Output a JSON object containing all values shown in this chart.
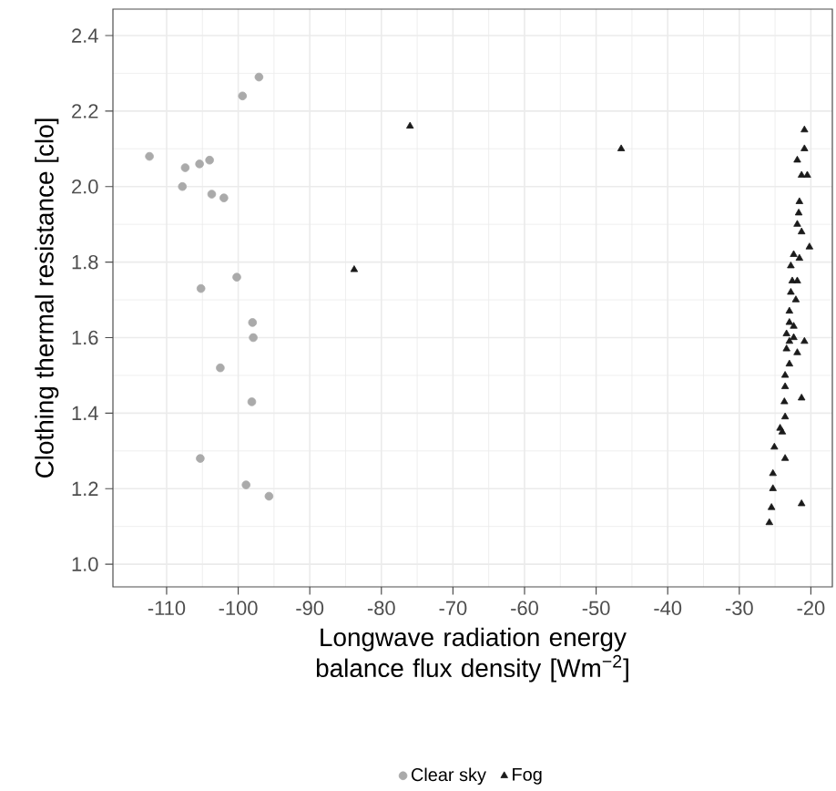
{
  "chart_data": {
    "type": "scatter",
    "xlabel": "Longwave radiation energy balance flux density  [Wm$^{−2}$]",
    "ylabel": "Clothing thermal resistance [clo]",
    "xlim": [
      -117.5,
      -17
    ],
    "ylim": [
      0.94,
      2.47
    ],
    "xticks": [
      -110,
      -100,
      -90,
      -80,
      -70,
      -60,
      -50,
      -40,
      -30,
      -20
    ],
    "yticks": [
      {
        "value": 1.0,
        "label": "1.0"
      },
      {
        "value": 1.2,
        "label": "1.2"
      },
      {
        "value": 1.4,
        "label": "1.4"
      },
      {
        "value": 1.6,
        "label": "1.6"
      },
      {
        "value": 1.8,
        "label": "1.8"
      },
      {
        "value": 2.0,
        "label": "2.0"
      },
      {
        "value": 2.2,
        "label": "2.2"
      },
      {
        "value": 2.4,
        "label": "2.4"
      }
    ],
    "grid": true,
    "legend": "bottom",
    "series": [
      {
        "name": "Clear sky",
        "color": "#aaaaaa",
        "marker": "circle",
        "x": [
          -112.4,
          -107.4,
          -107.8,
          -105.4,
          -104.0,
          -103.7,
          -102.0,
          -99.4,
          -97.1,
          -105.2,
          -100.2,
          -98.0,
          -97.9,
          -102.5,
          -98.1,
          -105.3,
          -98.9,
          -95.7
        ],
        "values": [
          2.08,
          2.05,
          2.0,
          2.06,
          2.07,
          1.98,
          1.97,
          2.24,
          2.29,
          1.73,
          1.76,
          1.64,
          1.6,
          1.52,
          1.43,
          1.28,
          1.21,
          1.18
        ]
      },
      {
        "name": "Fog",
        "color": "#1a1a1a",
        "marker": "triangle",
        "x": [
          -83.8,
          -76.0,
          -46.5,
          -20.9,
          -20.9,
          -21.9,
          -21.3,
          -20.5,
          -21.6,
          -21.7,
          -21.9,
          -21.3,
          -20.2,
          -22.4,
          -21.6,
          -22.8,
          -22.6,
          -21.9,
          -22.8,
          -22.1,
          -23.0,
          -23.0,
          -22.4,
          -23.4,
          -22.4,
          -23.0,
          -20.9,
          -23.4,
          -21.9,
          -23.0,
          -23.6,
          -23.6,
          -21.3,
          -23.7,
          -23.6,
          -24.3,
          -24.0,
          -25.1,
          -23.6,
          -25.3,
          -25.3,
          -25.5,
          -21.3,
          -25.8
        ],
        "values": [
          1.78,
          2.16,
          2.1,
          2.15,
          2.1,
          2.07,
          2.03,
          2.03,
          1.96,
          1.93,
          1.9,
          1.88,
          1.84,
          1.82,
          1.81,
          1.79,
          1.75,
          1.75,
          1.72,
          1.7,
          1.67,
          1.64,
          1.63,
          1.61,
          1.6,
          1.59,
          1.59,
          1.57,
          1.56,
          1.53,
          1.5,
          1.47,
          1.44,
          1.43,
          1.39,
          1.36,
          1.35,
          1.31,
          1.28,
          1.24,
          1.2,
          1.15,
          1.16,
          1.11
        ]
      }
    ]
  }
}
